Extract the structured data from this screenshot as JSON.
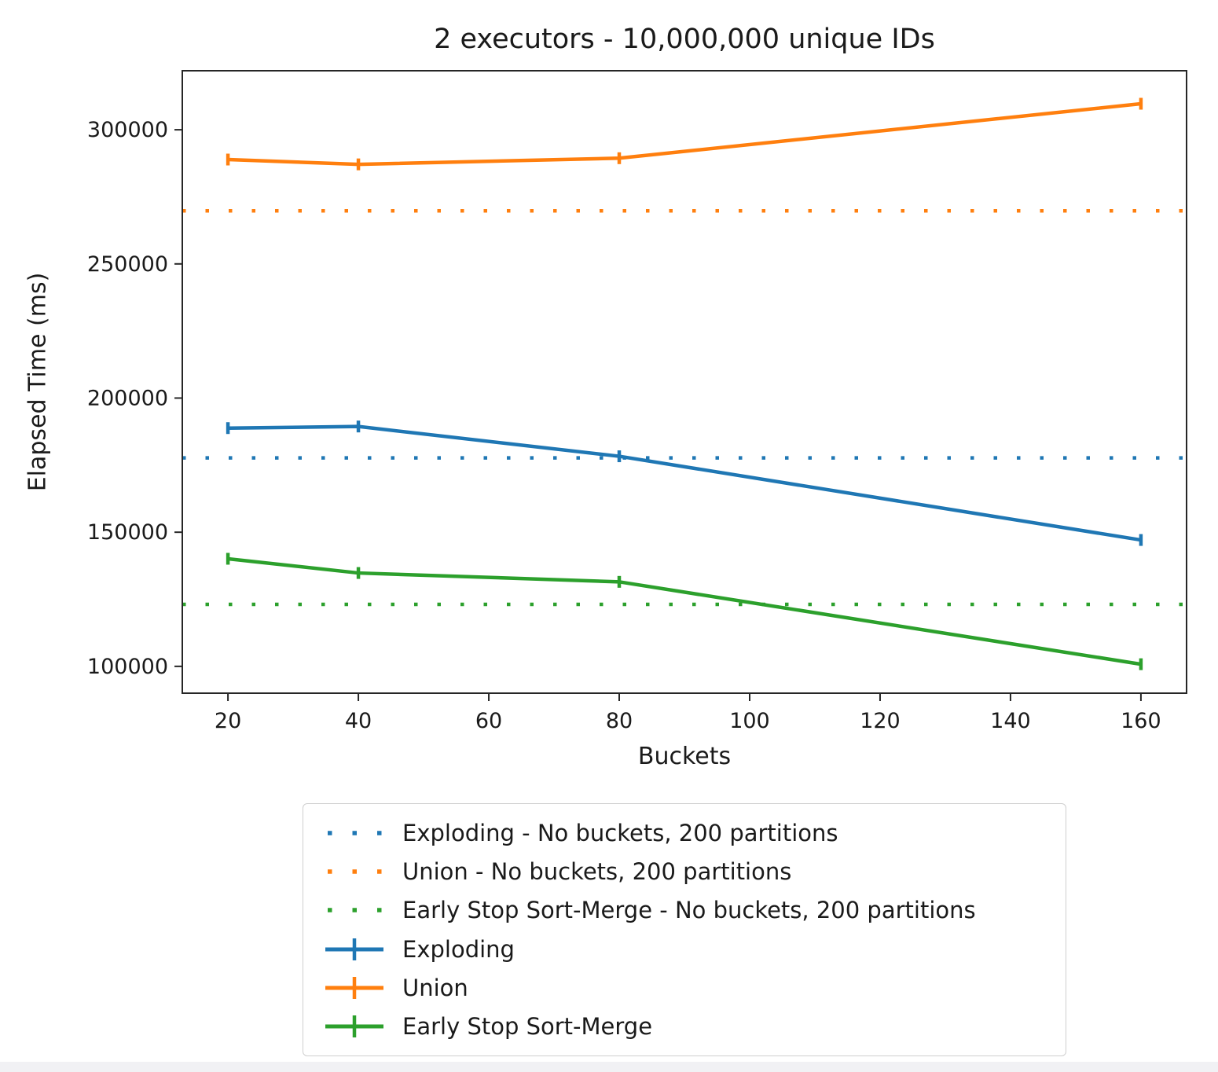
{
  "chart_data": {
    "type": "line",
    "title": "2 executors - 10,000,000 unique IDs",
    "xlabel": "Buckets",
    "ylabel": "Elapsed Time (ms)",
    "x": [
      20,
      40,
      80,
      160
    ],
    "series": [
      {
        "name": "Exploding",
        "color": "#1f77b4",
        "line_style": "solid",
        "marker": "errorbar",
        "values": [
          188800,
          189400,
          178300,
          147100
        ]
      },
      {
        "name": "Union",
        "color": "#ff7f0e",
        "line_style": "solid",
        "marker": "errorbar",
        "values": [
          288900,
          287100,
          289400,
          309700
        ]
      },
      {
        "name": "Early Stop Sort-Merge",
        "color": "#2ca02c",
        "line_style": "solid",
        "marker": "errorbar",
        "values": [
          140100,
          134800,
          131500,
          100800
        ]
      }
    ],
    "baselines": [
      {
        "name": "Exploding - No buckets, 200 partitions",
        "color": "#1f77b4",
        "line_style": "dotted",
        "value": 177700
      },
      {
        "name": "Union - No buckets, 200 partitions",
        "color": "#ff7f0e",
        "line_style": "dotted",
        "value": 269800
      },
      {
        "name": "Early Stop Sort-Merge - No buckets, 200 partitions",
        "color": "#2ca02c",
        "line_style": "dotted",
        "value": 123100
      }
    ],
    "x_ticks": [
      20,
      40,
      60,
      80,
      100,
      120,
      140,
      160
    ],
    "y_ticks": [
      100000,
      150000,
      200000,
      250000,
      300000
    ],
    "xlim": [
      13,
      167
    ],
    "ylim": [
      90000,
      322000
    ],
    "grid": false,
    "legend_position": "bottom-center",
    "axis_color": "#262626",
    "text_color": "#1a1a1a"
  }
}
